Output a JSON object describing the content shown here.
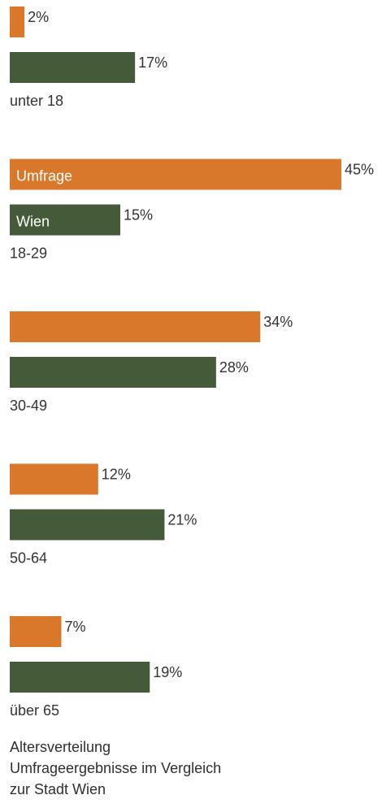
{
  "chart_data": {
    "type": "bar",
    "orientation": "horizontal",
    "categories": [
      "unter 18",
      "18-29",
      "30-49",
      "50-64",
      "über 65"
    ],
    "series": [
      {
        "name": "Umfrage",
        "values": [
          2,
          45,
          34,
          12,
          7
        ],
        "labels": [
          "2%",
          "45%",
          "34%",
          "12%",
          "7%"
        ]
      },
      {
        "name": "Wien",
        "values": [
          17,
          15,
          28,
          21,
          19
        ],
        "labels": [
          "17%",
          "15%",
          "28%",
          "21%",
          "19%"
        ]
      }
    ],
    "colors": [
      "#d9772b",
      "#455a38"
    ],
    "xlim": [
      0,
      45
    ],
    "grid": false,
    "legend": "inside first bars of 18-29 group",
    "caption": [
      "Altersverteilung",
      "Umfrageergebnisse im Vergleich",
      "zur Stadt Wien"
    ]
  }
}
